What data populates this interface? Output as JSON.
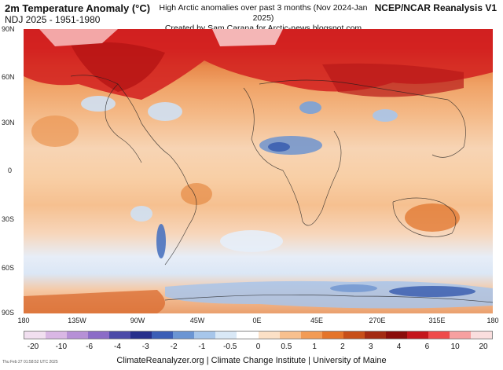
{
  "header": {
    "title": "2m Temperature Anomaly (°C)",
    "subtitle": "NDJ 2025 - 1951-1980",
    "center_line1": "High Arctic anomalies over past 3 months (Nov 2024-Jan 2025)",
    "center_line2": "Created by Sam Carana for Arctic-news.blogspot.com",
    "dataset": "NCEP/NCAR Reanalysis V1"
  },
  "map": {
    "lat_labels": [
      "90N",
      "60N",
      "30N",
      "0",
      "30S",
      "60S",
      "90S"
    ],
    "lon_labels": [
      "180",
      "135W",
      "90W",
      "45W",
      "0E",
      "45E",
      "270E",
      "315E",
      "180"
    ]
  },
  "colorbar": {
    "labels": [
      "-20",
      "-10",
      "-6",
      "-4",
      "-3",
      "-2",
      "-1",
      "-0.5",
      "0",
      "0.5",
      "1",
      "2",
      "3",
      "4",
      "6",
      "10",
      "20"
    ],
    "colors": [
      "#f1dff0",
      "#d9b7e4",
      "#b690d6",
      "#8b6cc7",
      "#4c4aa8",
      "#27308c",
      "#3b5eb6",
      "#6b95d3",
      "#a7c6ea",
      "#d9e8f6",
      "#ffffff",
      "#fbe0c6",
      "#f8c08e",
      "#f29b55",
      "#e4742a",
      "#c74f19",
      "#a32a12",
      "#8a0d0b",
      "#c4161c",
      "#ef4a4a",
      "#f6a0a0",
      "#fadede"
    ]
  },
  "timestamp": "Thu Feb 27 01:58:52 UTC 2025",
  "footer": "ClimateReanalyzer.org | Climate Change Institute | University of Maine"
}
